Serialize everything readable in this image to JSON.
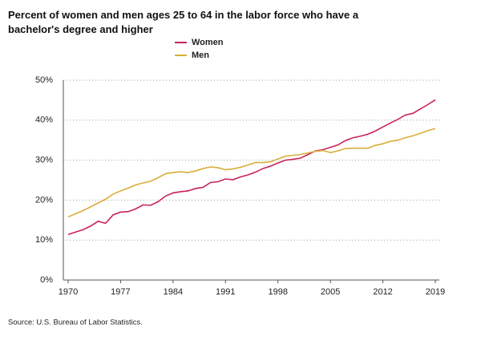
{
  "chart_data": {
    "type": "line",
    "title": "Percent of women and men ages 25 to 64 in the labor force who have a bachelor's degree and higher",
    "source": "Source: U.S. Bureau of Labor Statistics.",
    "x": [
      1970,
      1971,
      1972,
      1973,
      1974,
      1975,
      1976,
      1977,
      1978,
      1979,
      1980,
      1981,
      1982,
      1983,
      1984,
      1985,
      1986,
      1987,
      1988,
      1989,
      1990,
      1991,
      1992,
      1993,
      1994,
      1995,
      1996,
      1997,
      1998,
      1999,
      2000,
      2001,
      2002,
      2003,
      2004,
      2005,
      2006,
      2007,
      2008,
      2009,
      2010,
      2011,
      2012,
      2013,
      2014,
      2015,
      2016,
      2017,
      2018,
      2019
    ],
    "series": [
      {
        "name": "Women",
        "color": "#c8235a",
        "values": [
          11.4,
          12.0,
          12.6,
          13.5,
          14.7,
          14.2,
          16.3,
          17.0,
          17.1,
          17.8,
          18.8,
          18.7,
          19.6,
          21.0,
          21.8,
          22.1,
          22.3,
          22.9,
          23.2,
          24.4,
          24.6,
          25.3,
          25.1,
          25.8,
          26.3,
          27.0,
          27.9,
          28.5,
          29.3,
          30.0,
          30.2,
          30.5,
          31.4,
          32.3,
          32.6,
          33.2,
          33.8,
          34.9,
          35.6,
          36.0,
          36.5,
          37.3,
          38.3,
          39.3,
          40.2,
          41.3,
          41.7,
          42.8,
          43.9,
          45.1
        ]
      },
      {
        "name": "Men",
        "color": "#d8ae3a",
        "values": [
          15.8,
          16.6,
          17.4,
          18.3,
          19.3,
          20.2,
          21.5,
          22.3,
          23.0,
          23.8,
          24.3,
          24.7,
          25.6,
          26.6,
          26.9,
          27.1,
          26.9,
          27.3,
          27.9,
          28.3,
          28.1,
          27.6,
          27.8,
          28.2,
          28.8,
          29.4,
          29.4,
          29.6,
          30.3,
          31.0,
          31.2,
          31.4,
          31.8,
          32.2,
          32.4,
          31.9,
          32.3,
          32.9,
          33.0,
          33.0,
          33.0,
          33.7,
          34.1,
          34.7,
          35.0,
          35.6,
          36.1,
          36.7,
          37.4,
          37.9
        ]
      }
    ],
    "xlim": [
      1970,
      2019
    ],
    "xticks": [
      1970,
      1977,
      1984,
      1991,
      1998,
      2005,
      2012,
      2019
    ],
    "ylim": [
      0,
      50
    ],
    "yticks": [
      {
        "value": 0,
        "label": "0%"
      },
      {
        "value": 10,
        "label": "10%"
      },
      {
        "value": 20,
        "label": "20%"
      },
      {
        "value": 30,
        "label": "30%"
      },
      {
        "value": 40,
        "label": "40%"
      },
      {
        "value": 50,
        "label": "50%"
      }
    ],
    "grid": true
  }
}
